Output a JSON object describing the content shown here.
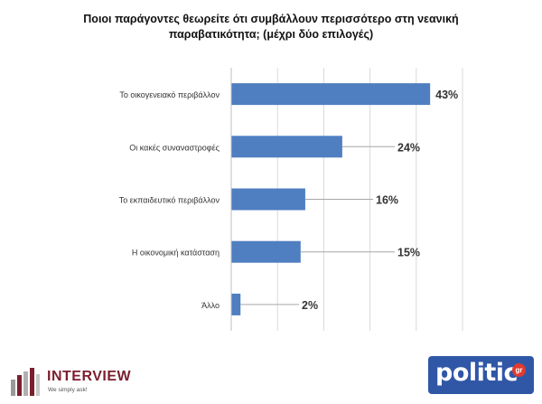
{
  "title_line1": "Ποιοι παράγοντες θεωρείτε ότι συμβάλλουν περισσότερο στη νεανική",
  "title_line2": "παραβατικότητα; (μέχρι δύο επιλογές)",
  "chart_data": {
    "type": "bar",
    "orientation": "horizontal",
    "title": "Ποιοι παράγοντες θεωρείτε ότι συμβάλλουν περισσότερο στη νεανική παραβατικότητα; (μέχρι δύο επιλογές)",
    "categories": [
      "Το οικογενειακό περιβάλλον",
      "Οι κακές συναναστροφές",
      "Το εκπαιδευτικό περιβάλλον",
      "Η οικονομική κατάσταση",
      "Άλλο"
    ],
    "values": [
      43,
      24,
      16,
      15,
      2
    ],
    "labels": [
      "43%",
      "24%",
      "16%",
      "15%",
      "2%"
    ],
    "xlim": [
      0,
      50
    ],
    "grid": true,
    "bar_color": "#4f7ec1"
  },
  "logos": {
    "interview_name": "INTERVIEW",
    "interview_tagline": "We simply ask!",
    "politic_name": "politic",
    "politic_suffix": "gr"
  }
}
